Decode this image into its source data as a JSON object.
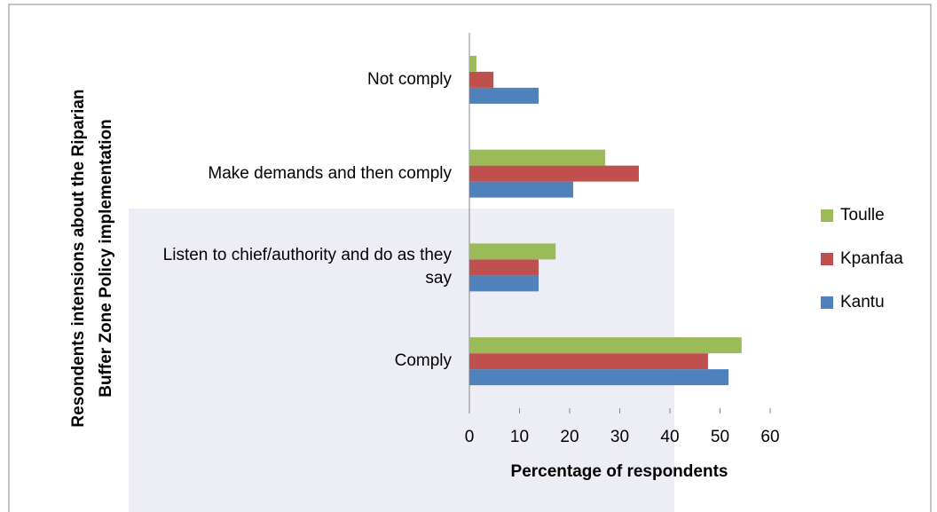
{
  "chart_data": {
    "type": "hbar",
    "y_axis_title": "Resondents intensions about the Riparian Buffer Zone Policy implementation",
    "x_axis_title": "Percentage of respondents",
    "categories": [
      "Comply",
      "Listen to chief/authority and do as they say",
      "Make demands and then comply",
      "Not comply"
    ],
    "series": [
      {
        "name": "Kantu",
        "color": "#4f81bd",
        "values": [
          51.7,
          13.8,
          20.7,
          13.8
        ]
      },
      {
        "name": "Kpanfaa",
        "color": "#c0504d",
        "values": [
          47.6,
          13.8,
          33.8,
          4.8
        ]
      },
      {
        "name": "Toulle",
        "color": "#9bbb59",
        "values": [
          54.3,
          17.2,
          27.1,
          1.4
        ]
      }
    ],
    "xlim": [
      0,
      60
    ],
    "xticks": [
      0,
      10,
      20,
      30,
      40,
      50,
      60
    ]
  }
}
